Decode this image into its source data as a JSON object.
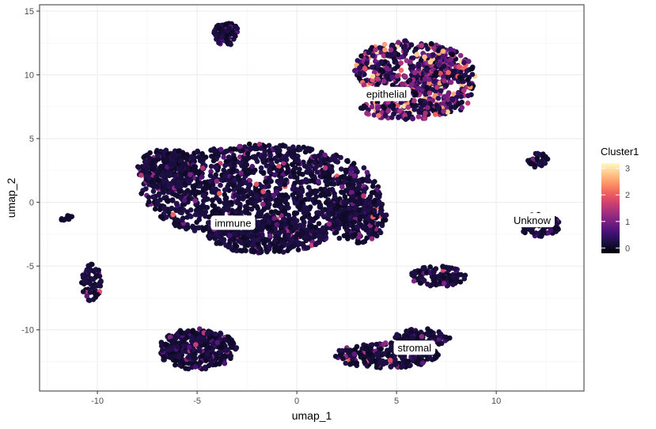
{
  "chart_data": {
    "type": "scatter",
    "title": "",
    "xlabel": "umap_1",
    "ylabel": "umap_2",
    "xlim": [
      -12.9,
      14.4
    ],
    "ylim": [
      -14.8,
      15.5
    ],
    "x_ticks": [
      -10,
      -5,
      0,
      5,
      10
    ],
    "y_ticks": [
      -10,
      -5,
      0,
      5,
      10,
      15
    ],
    "grid": true,
    "color_scale": {
      "name": "Cluster1",
      "palette": "magma",
      "range": [
        -0.2,
        3.2
      ],
      "ticks": [
        0,
        1,
        2,
        3
      ],
      "stops": [
        "#000004",
        "#180f3d",
        "#440f76",
        "#721f81",
        "#9e2f7f",
        "#cd4071",
        "#f1605d",
        "#fd9668",
        "#feca8d",
        "#fcfdbf"
      ]
    },
    "clusters": [
      {
        "id": "immune-main",
        "cx": -1.8,
        "cy": 0.8,
        "rx": 6.0,
        "ry": 3.8,
        "n": 1400
      },
      {
        "id": "immune-lobe-left",
        "cx": -6.5,
        "cy": 2.6,
        "rx": 1.5,
        "ry": 1.6,
        "n": 300
      },
      {
        "id": "immune-lobe-right",
        "cx": 3.0,
        "cy": -1.2,
        "rx": 1.5,
        "ry": 2.0,
        "n": 250
      },
      {
        "id": "immune-lower",
        "cx": -1.5,
        "cy": -2.6,
        "rx": 3.0,
        "ry": 1.4,
        "n": 350
      },
      {
        "id": "epithelial-main",
        "cx": 5.5,
        "cy": 10.5,
        "rx": 2.7,
        "ry": 2.2,
        "n": 450
      },
      {
        "id": "epithelial-right",
        "cx": 7.6,
        "cy": 9.5,
        "rx": 1.4,
        "ry": 2.6,
        "n": 220
      },
      {
        "id": "epithelial-bottom",
        "cx": 5.5,
        "cy": 7.3,
        "rx": 2.3,
        "ry": 0.8,
        "n": 160
      },
      {
        "id": "top-small",
        "cx": -3.5,
        "cy": 13.2,
        "rx": 0.7,
        "ry": 0.9,
        "n": 80
      },
      {
        "id": "right-top-small",
        "cx": 12.0,
        "cy": 3.3,
        "rx": 0.6,
        "ry": 0.6,
        "n": 40
      },
      {
        "id": "unknow",
        "cx": 12.2,
        "cy": -1.8,
        "rx": 1.0,
        "ry": 0.9,
        "n": 80
      },
      {
        "id": "mid-right",
        "cx": 7.1,
        "cy": -5.8,
        "rx": 1.4,
        "ry": 0.8,
        "n": 110
      },
      {
        "id": "left-small",
        "cx": -10.3,
        "cy": -6.3,
        "rx": 0.5,
        "ry": 1.5,
        "n": 60
      },
      {
        "id": "far-left-tiny",
        "cx": -11.6,
        "cy": -1.2,
        "rx": 0.5,
        "ry": 0.2,
        "n": 10
      },
      {
        "id": "bottom-left",
        "cx": -5.0,
        "cy": -11.5,
        "rx": 2.0,
        "ry": 1.6,
        "n": 350
      },
      {
        "id": "stromal",
        "cx": 4.5,
        "cy": -12.0,
        "rx": 2.6,
        "ry": 1.0,
        "n": 260
      },
      {
        "id": "stromal-right",
        "cx": 6.3,
        "cy": -10.6,
        "rx": 1.4,
        "ry": 0.7,
        "n": 100
      }
    ],
    "labels": [
      {
        "text": "epithelial",
        "x": 4.5,
        "y": 8.5
      },
      {
        "text": "immune",
        "x": -3.2,
        "y": -1.6
      },
      {
        "text": "Unknow",
        "x": 11.8,
        "y": -1.4
      },
      {
        "text": "stromal",
        "x": 5.9,
        "y": -11.4
      }
    ]
  }
}
